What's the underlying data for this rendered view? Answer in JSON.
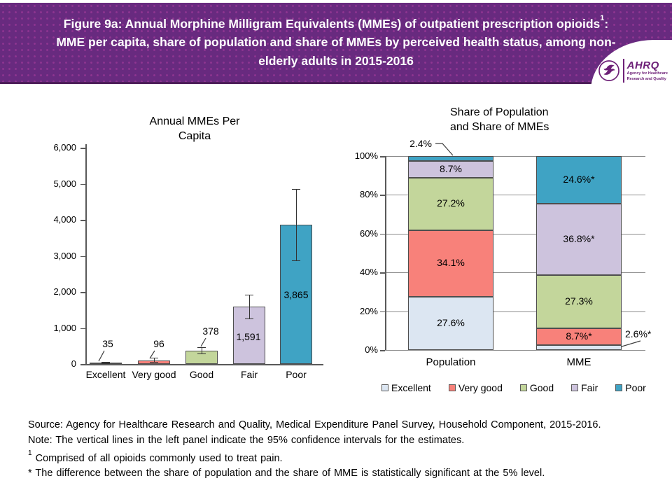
{
  "header": {
    "title_prefix": "Figure 9a: Annual Morphine Milligram Equivalents (MMEs) of outpatient prescription opioids",
    "title_sup": "1",
    "title_suffix": ": MME per capita, share of population and share of MMEs by perceived health status, among non-elderly adults in 2015-2016",
    "bg_color": "#682a7f",
    "logo": {
      "org": "AHRQ",
      "tagline_line1": "Agency for Healthcare",
      "tagline_line2": "Research and Quality"
    }
  },
  "series_colors": {
    "Excellent": "#dce6f2",
    "Very good": "#f8817a",
    "Good": "#c3d69b",
    "Fair": "#cdc3dd",
    "Poor": "#3fa3c4"
  },
  "chart_data": [
    {
      "type": "bar",
      "title": "Annual MMEs Per Capita",
      "title_lines": [
        "Annual MMEs Per",
        "Capita"
      ],
      "categories": [
        "Excellent",
        "Very good",
        "Good",
        "Fair",
        "Poor"
      ],
      "values": [
        35,
        96,
        378,
        1591,
        3865
      ],
      "value_labels": [
        "35",
        "96",
        "378",
        "1,591",
        "3,865"
      ],
      "ci_low": [
        18,
        55,
        290,
        1270,
        2880
      ],
      "ci_high": [
        52,
        175,
        465,
        1925,
        4855
      ],
      "xlabel": "",
      "ylabel": "",
      "ylim": [
        0,
        6000
      ],
      "yticks": [
        0,
        1000,
        2000,
        3000,
        4000,
        5000,
        6000
      ],
      "ytick_labels": [
        "0",
        "1,000",
        "2,000",
        "3,000",
        "4,000",
        "5,000",
        "6,000"
      ],
      "grid": false,
      "error_bars": "95% confidence intervals"
    },
    {
      "type": "bar",
      "subtype": "stacked-100pct",
      "title": "Share of Population and Share of MMEs",
      "title_lines": [
        "Share of Population",
        "and Share of MMEs"
      ],
      "categories": [
        "Population",
        "MME"
      ],
      "stack_order_bottom_to_top": [
        "Excellent",
        "Very good",
        "Good",
        "Fair",
        "Poor"
      ],
      "series": [
        {
          "name": "Excellent",
          "values": [
            27.6,
            2.6
          ],
          "labels": [
            "27.6%",
            "2.6%*"
          ]
        },
        {
          "name": "Very good",
          "values": [
            34.1,
            8.7
          ],
          "labels": [
            "34.1%",
            "8.7%*"
          ]
        },
        {
          "name": "Good",
          "values": [
            27.2,
            27.3
          ],
          "labels": [
            "27.2%",
            "27.3%"
          ]
        },
        {
          "name": "Fair",
          "values": [
            8.7,
            36.8
          ],
          "labels": [
            "8.7%",
            "36.8%*"
          ]
        },
        {
          "name": "Poor",
          "values": [
            2.4,
            24.6
          ],
          "labels": [
            "2.4%",
            "24.6%*"
          ]
        }
      ],
      "ylim": [
        0,
        100
      ],
      "yticks": [
        0,
        20,
        40,
        60,
        80,
        100
      ],
      "ytick_labels": [
        "0%",
        "20%",
        "40%",
        "60%",
        "80%",
        "100%"
      ],
      "grid": true,
      "legend": [
        "Excellent",
        "Very good",
        "Good",
        "Fair",
        "Poor"
      ],
      "legend_position": "bottom"
    }
  ],
  "notes": {
    "source": "Source: Agency for Healthcare Research and Quality, Medical Expenditure Panel Survey, Household Component, 2015-2016.",
    "note": "Note: The vertical lines in the left panel indicate the 95% confidence intervals for the estimates.",
    "footnote1_sup": "1",
    "footnote1_text": " Comprised of all opioids commonly used to treat pain.",
    "footnote2": "* The difference between the share of population and the share of MME is statistically significant at the 5% level."
  }
}
